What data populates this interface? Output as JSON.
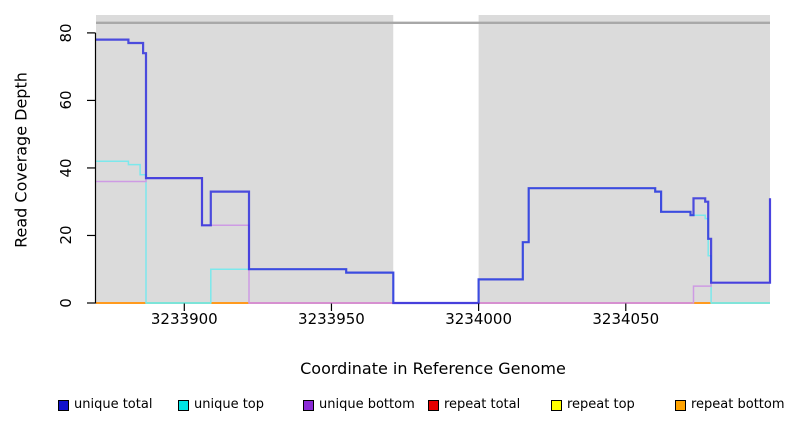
{
  "chart_data": {
    "type": "line",
    "subtype": "step-coverage",
    "title": "",
    "xlabel": "Coordinate in Reference Genome",
    "ylabel": "Read Coverage Depth",
    "x_range": [
      3233870,
      3234099
    ],
    "y_range": [
      0,
      85.3
    ],
    "x_ticks": [
      3233900,
      3233950,
      3234000,
      3234050
    ],
    "y_ticks": [
      0,
      20,
      40,
      60,
      80
    ],
    "grid": false,
    "legend_position": "bottom",
    "plot_bg_color": "#DBDBDB",
    "masked_region": {
      "from": 3233971,
      "to": 3234000
    },
    "background_bands": [
      {
        "from": 3233870,
        "to": 3233971
      },
      {
        "from": 3234000,
        "to": 3234099
      }
    ],
    "mask_line_y": 83,
    "mask_line_color": "#A8A8A8",
    "series": [
      {
        "name": "unique total",
        "color": "#2B2BDD",
        "opacity": 0.82,
        "width": 2.2,
        "points": [
          [
            3233870,
            78
          ],
          [
            3233881,
            77
          ],
          [
            3233886,
            74
          ],
          [
            3233887,
            37
          ],
          [
            3233906,
            23
          ],
          [
            3233909,
            33
          ],
          [
            3233922,
            10
          ],
          [
            3233955,
            9
          ],
          [
            3233971,
            0
          ],
          [
            3234000,
            7
          ],
          [
            3234015,
            18
          ],
          [
            3234017,
            34
          ],
          [
            3234060,
            33
          ],
          [
            3234062,
            27
          ],
          [
            3234072,
            26
          ],
          [
            3234073,
            31
          ],
          [
            3234077,
            30
          ],
          [
            3234078,
            19
          ],
          [
            3234079,
            6
          ],
          [
            3234099,
            31
          ]
        ]
      },
      {
        "name": "unique top",
        "color": "#7CE8EC",
        "opacity": 1,
        "width": 1.5,
        "points": [
          [
            3233870,
            42
          ],
          [
            3233881,
            41
          ],
          [
            3233885,
            38
          ],
          [
            3233887,
            0
          ],
          [
            3233909,
            10
          ],
          [
            3233955,
            9
          ],
          [
            3233971,
            0
          ],
          [
            3234000,
            7
          ],
          [
            3234015,
            18
          ],
          [
            3234017,
            34
          ],
          [
            3234060,
            33
          ],
          [
            3234062,
            27
          ],
          [
            3234072,
            26
          ],
          [
            3234077,
            25
          ],
          [
            3234078,
            14
          ],
          [
            3234079,
            0
          ],
          [
            3234099,
            0
          ]
        ]
      },
      {
        "name": "unique bottom",
        "color": "#CE9BE4",
        "opacity": 1,
        "width": 1.5,
        "points": [
          [
            3233870,
            36
          ],
          [
            3233887,
            37
          ],
          [
            3233906,
            23
          ],
          [
            3233922,
            0
          ],
          [
            3234073,
            5
          ],
          [
            3234079,
            6
          ],
          [
            3234099,
            31
          ]
        ]
      },
      {
        "name": "repeat total",
        "color": "#E4637F",
        "opacity": 1,
        "width": 1.5,
        "points": [
          [
            3233870,
            0
          ],
          [
            3234099,
            0
          ]
        ]
      },
      {
        "name": "repeat top",
        "color": "#FFFF00",
        "opacity": 1,
        "width": 1.5,
        "points": [
          [
            3233870,
            0
          ],
          [
            3234099,
            0
          ]
        ]
      },
      {
        "name": "repeat bottom",
        "color": "#FF9A1E",
        "opacity": 1,
        "width": 1.5,
        "points": [
          [
            3233870,
            0
          ],
          [
            3234099,
            0
          ]
        ]
      }
    ],
    "baseline_segments": [
      {
        "from": 3233870,
        "to": 3233887,
        "color": "#FF9A1E"
      },
      {
        "from": 3233887,
        "to": 3233909,
        "color": "#7FD89B"
      },
      {
        "from": 3233909,
        "to": 3233922,
        "color": "#FF9A1E"
      },
      {
        "from": 3233922,
        "to": 3234072,
        "color": "#ED6F96"
      },
      {
        "from": 3234072,
        "to": 3234079,
        "color": "#FF9A1E"
      },
      {
        "from": 3234079,
        "to": 3234099,
        "color": "#8FD8A0"
      }
    ],
    "legend": [
      {
        "label": "unique total",
        "color": "#1111CC"
      },
      {
        "label": "unique top",
        "color": "#00E5E5"
      },
      {
        "label": "unique bottom",
        "color": "#8B2BD6"
      },
      {
        "label": "repeat total",
        "color": "#E60000"
      },
      {
        "label": "repeat top",
        "color": "#FFFF00"
      },
      {
        "label": "repeat bottom",
        "color": "#FFA300"
      }
    ]
  }
}
